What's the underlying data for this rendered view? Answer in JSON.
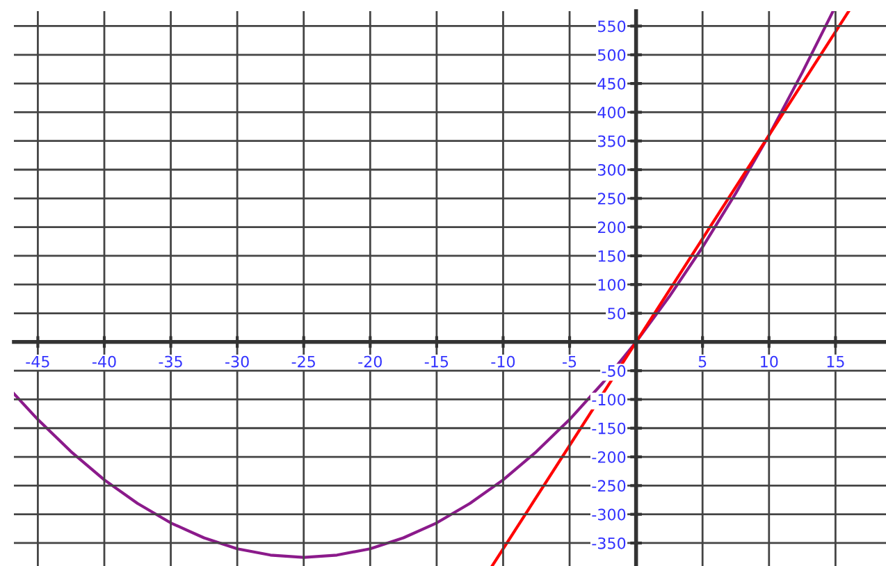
{
  "chart_data": {
    "type": "line",
    "xlim": [
      -46.8,
      18.8
    ],
    "ylim": [
      -390,
      576
    ],
    "xticks": [
      -45,
      -40,
      -35,
      -30,
      -25,
      -20,
      -15,
      -10,
      -5,
      5,
      10,
      15
    ],
    "yticks": [
      -350,
      -300,
      -250,
      -200,
      -150,
      -100,
      -50,
      50,
      100,
      150,
      200,
      250,
      300,
      350,
      400,
      450,
      500,
      550
    ],
    "grid": true,
    "marker": "none",
    "line_style": "solid",
    "series": [
      {
        "color": "#8b1a8b",
        "x": [
          -46.8,
          -45,
          -42.5,
          -40,
          -37.5,
          -35,
          -32.5,
          -30,
          -27.5,
          -25,
          -22.5,
          -20,
          -17.5,
          -15,
          -12.5,
          -10,
          -7.5,
          -5,
          -2.5,
          0,
          2.5,
          5,
          7.5,
          10,
          12.5,
          14.8
        ],
        "values": [
          -90,
          -135,
          -191,
          -240,
          -281,
          -315,
          -341,
          -360,
          -371,
          -375,
          -371,
          -360,
          -341,
          -315,
          -281,
          -240,
          -191,
          -135,
          -71,
          0,
          79,
          165,
          259,
          360,
          469,
          575
        ]
      },
      {
        "color": "#ff0000",
        "x": [
          -10.8,
          16
        ],
        "values": [
          -389,
          576
        ]
      }
    ]
  }
}
